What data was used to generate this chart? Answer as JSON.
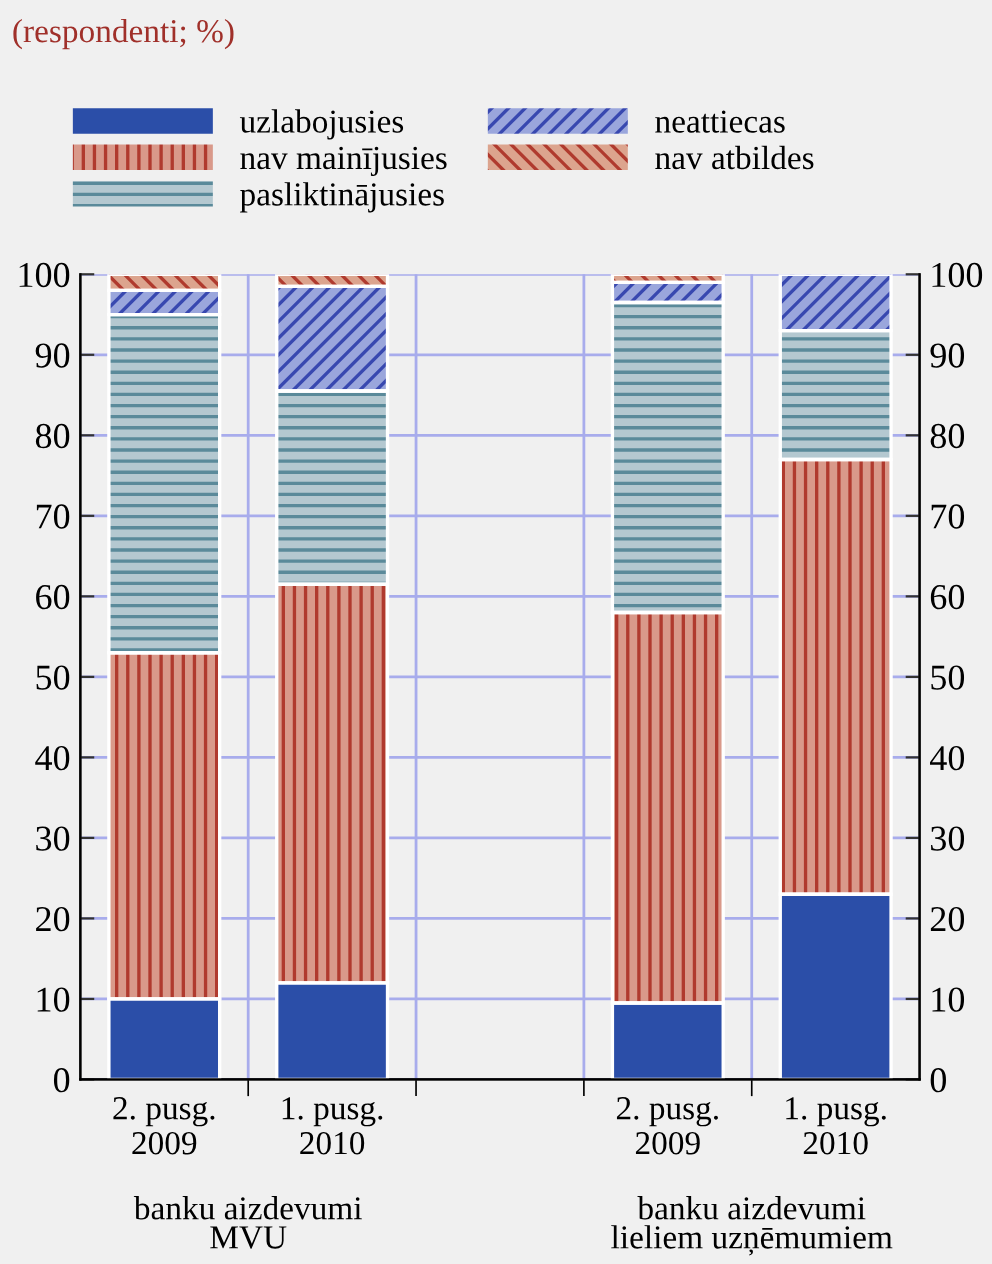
{
  "chart_data": {
    "type": "bar",
    "stacked": true,
    "title": "(respondenti; %)",
    "categories": [
      "2. pusg.\n2009",
      "1. pusg.\n2010",
      null,
      "2. pusg.\n2009",
      "1. pusg.\n2010"
    ],
    "series": [
      {
        "name": "uzlabojusies",
        "color": "#2b4ea8",
        "values": [
          10,
          12,
          null,
          9.5,
          23
        ]
      },
      {
        "name": "nav mainījusies",
        "color": "#d9998a",
        "values": [
          43,
          49.5,
          null,
          48.5,
          54
        ]
      },
      {
        "name": "pasliktinājusies",
        "color": "#b4c8d0",
        "values": [
          42,
          24,
          null,
          38.5,
          16
        ]
      },
      {
        "name": "neattiecas",
        "color": "#9aa6dc",
        "values": [
          3,
          13,
          null,
          2.5,
          7
        ]
      },
      {
        "name": "nav atbildes",
        "color": "#dca48e",
        "values": [
          2,
          1.5,
          null,
          1,
          0
        ]
      }
    ],
    "ylim": [
      0,
      100
    ],
    "yticks": [
      0,
      10,
      20,
      30,
      40,
      50,
      60,
      70,
      80,
      90,
      100
    ],
    "y2lim": [
      0,
      100
    ],
    "y2ticks": [
      0,
      10,
      20,
      30,
      40,
      50,
      60,
      70,
      80,
      90,
      100
    ],
    "grid": true,
    "legend": "top left",
    "annotations": [
      "banku aizdevumi\nMVU",
      "banku aizdevumi\nlieliem uzņēmumiem"
    ]
  }
}
